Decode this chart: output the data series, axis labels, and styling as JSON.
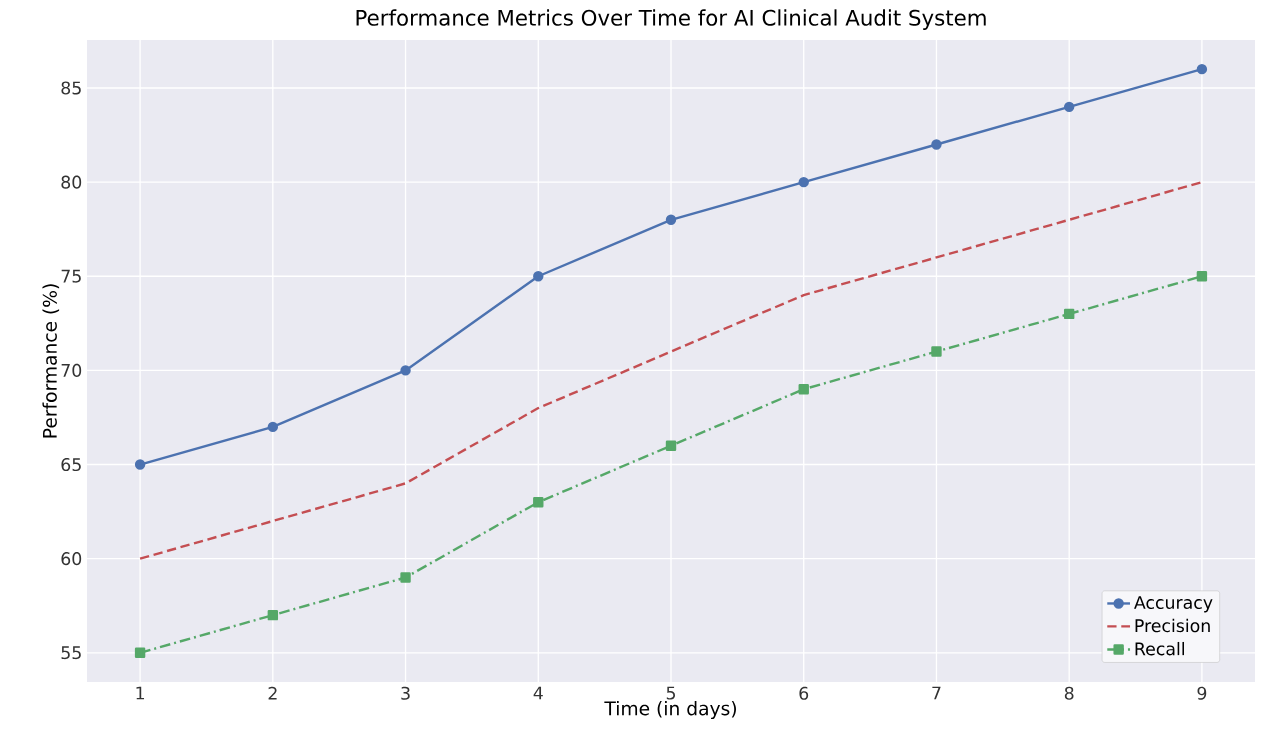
{
  "chart_data": {
    "type": "line",
    "title": "Performance Metrics Over Time for AI Clinical Audit System",
    "xlabel": "Time (in days)",
    "ylabel": "Performance (%)",
    "x": [
      1,
      2,
      3,
      4,
      5,
      6,
      7,
      8,
      9
    ],
    "series": [
      {
        "name": "Accuracy",
        "color": "#4c72b0",
        "marker": "circle",
        "line_style": "solid",
        "values": [
          65,
          67,
          70,
          75,
          78,
          80,
          82,
          84,
          86
        ]
      },
      {
        "name": "Precision",
        "color": "#c44e52",
        "marker": "none",
        "line_style": "dashed",
        "values": [
          60,
          62,
          64,
          68,
          71,
          74,
          76,
          78,
          80
        ]
      },
      {
        "name": "Recall",
        "color": "#55a868",
        "marker": "square",
        "line_style": "dashdot",
        "values": [
          55,
          57,
          59,
          63,
          66,
          69,
          71,
          73,
          75
        ]
      }
    ],
    "xlim": [
      0.6,
      9.4
    ],
    "ylim": [
      53.45,
      87.55
    ],
    "xticks": [
      1,
      2,
      3,
      4,
      5,
      6,
      7,
      8,
      9
    ],
    "yticks": [
      55,
      60,
      65,
      70,
      75,
      80,
      85
    ],
    "grid": true,
    "legend": "bottom right"
  }
}
